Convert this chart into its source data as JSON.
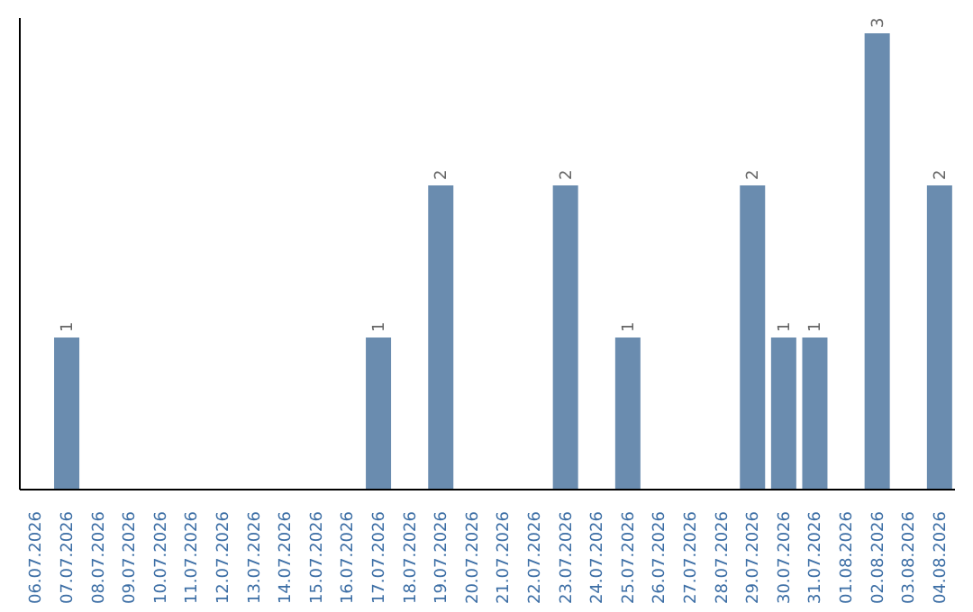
{
  "chart_data": {
    "type": "bar",
    "categories": [
      "06.07.2026",
      "07.07.2026",
      "08.07.2026",
      "09.07.2026",
      "10.07.2026",
      "11.07.2026",
      "12.07.2026",
      "13.07.2026",
      "14.07.2026",
      "15.07.2026",
      "16.07.2026",
      "17.07.2026",
      "18.07.2026",
      "19.07.2026",
      "20.07.2026",
      "21.07.2026",
      "22.07.2026",
      "23.07.2026",
      "24.07.2026",
      "25.07.2026",
      "26.07.2026",
      "27.07.2026",
      "28.07.2026",
      "29.07.2026",
      "30.07.2026",
      "31.07.2026",
      "01.08.2026",
      "02.08.2026",
      "03.08.2026",
      "04.08.2026"
    ],
    "values": [
      0,
      1,
      0,
      0,
      0,
      0,
      0,
      0,
      0,
      0,
      0,
      1,
      0,
      2,
      0,
      0,
      0,
      2,
      0,
      1,
      0,
      0,
      0,
      2,
      1,
      1,
      0,
      3,
      0,
      2
    ],
    "value_labels": [
      null,
      "1",
      null,
      null,
      null,
      null,
      null,
      null,
      null,
      null,
      null,
      "1",
      null,
      "2",
      null,
      null,
      null,
      "2",
      null,
      "1",
      null,
      null,
      null,
      "2",
      "1",
      "1",
      null,
      "3",
      null,
      "2"
    ],
    "color": "#6a8caf",
    "ylim": [
      0,
      3.1
    ],
    "tick_labels": "x",
    "grid": false,
    "legend": false
  }
}
